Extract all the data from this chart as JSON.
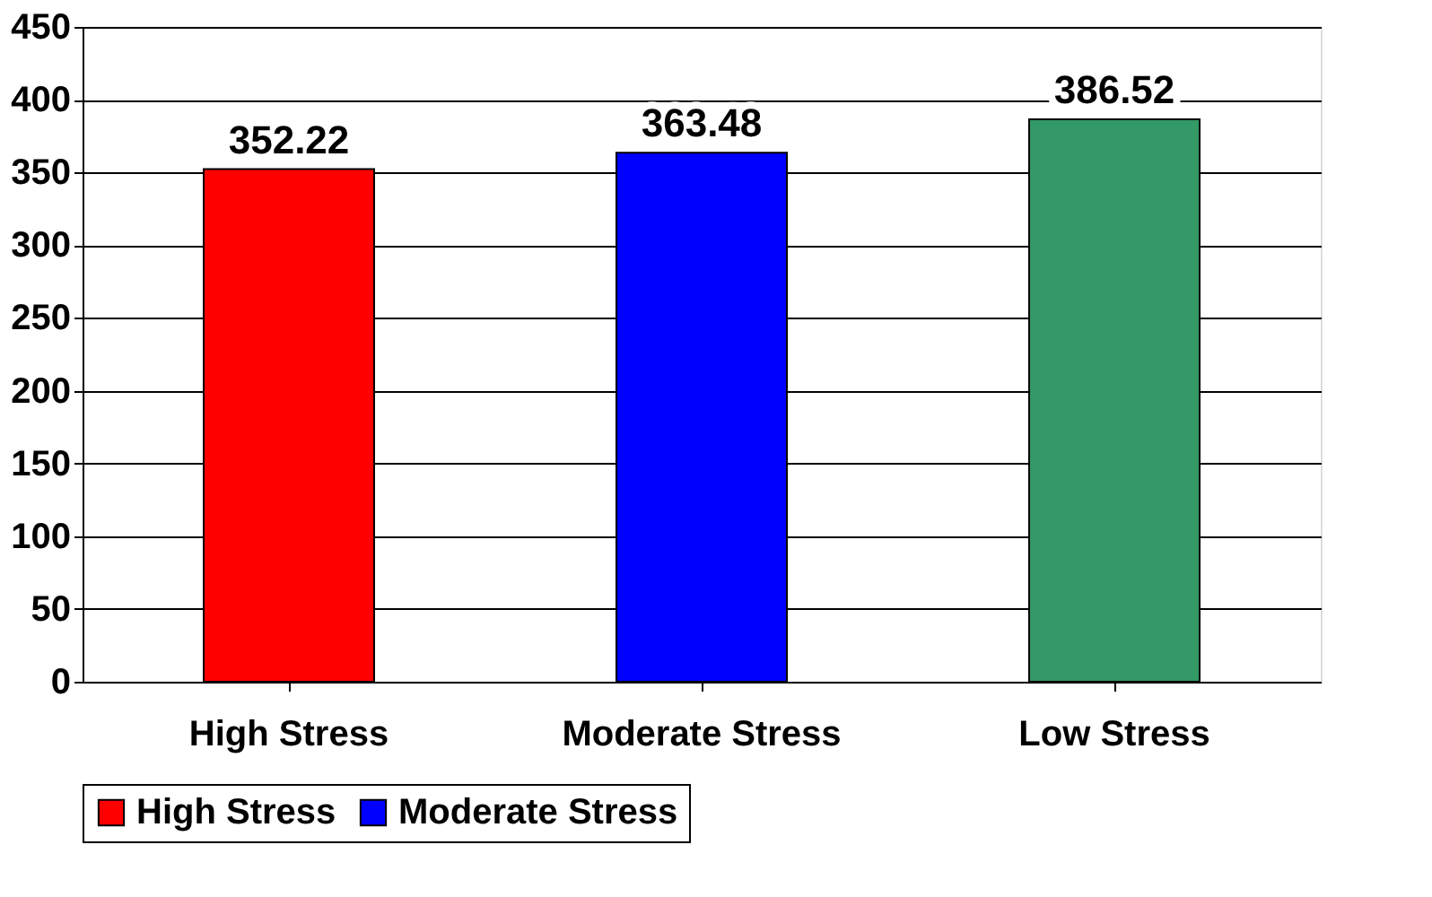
{
  "chart_data": {
    "type": "bar",
    "categories": [
      "High Stress",
      "Moderate Stress",
      "Low Stress"
    ],
    "series": [
      {
        "name": "High Stress",
        "color": "#ff0000",
        "values": [
          352.22,
          null,
          null
        ]
      },
      {
        "name": "Moderate Stress",
        "color": "#0000ff",
        "values": [
          null,
          363.48,
          null
        ]
      },
      {
        "color": "#339966",
        "values": [
          null,
          null,
          386.52
        ]
      }
    ],
    "ylim": [
      0,
      450
    ],
    "yticks": [
      0,
      50,
      100,
      150,
      200,
      250,
      300,
      350,
      400,
      450
    ],
    "grid": "y",
    "data_labels": true,
    "legend": "bottom"
  }
}
